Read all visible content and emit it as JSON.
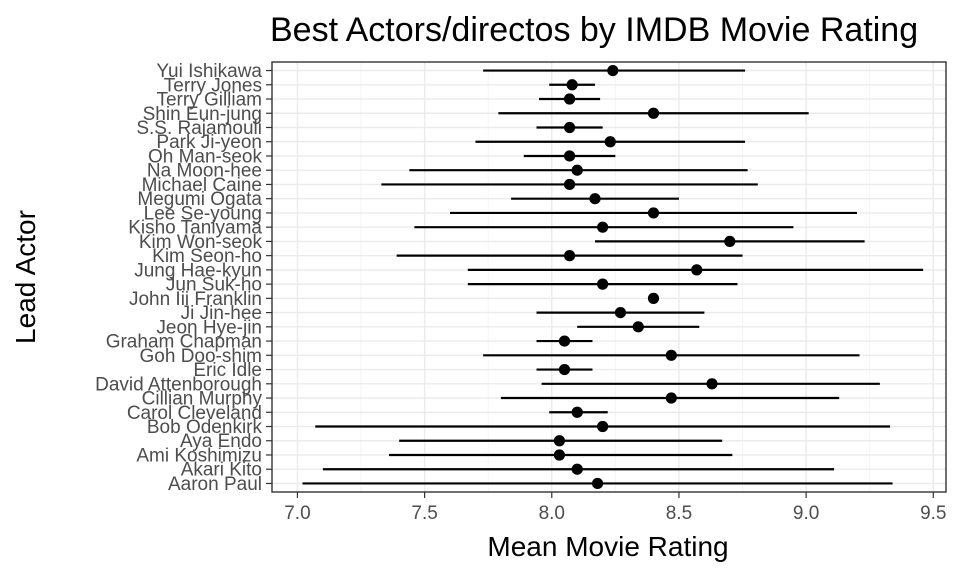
{
  "chart_data": {
    "type": "scatter",
    "title": "Best Actors/directos by IMDB Movie Rating",
    "xlabel": "Mean Movie Rating",
    "ylabel": "Lead Actor",
    "xlim": [
      6.9,
      9.55
    ],
    "x_ticks": [
      "7.0",
      "7.5",
      "8.0",
      "8.5",
      "9.0",
      "9.5"
    ],
    "grid": true,
    "legend": "none",
    "series": [
      {
        "points": [
          {
            "actor": "Yui Ishikawa",
            "mean": 8.24,
            "low": 7.73,
            "high": 8.76
          },
          {
            "actor": "Terry Jones",
            "mean": 8.08,
            "low": 7.99,
            "high": 8.17
          },
          {
            "actor": "Terry Gilliam",
            "mean": 8.07,
            "low": 7.95,
            "high": 8.19
          },
          {
            "actor": "Shin Eun-jung",
            "mean": 8.4,
            "low": 7.79,
            "high": 9.01
          },
          {
            "actor": "S.S. Rajamouli",
            "mean": 8.07,
            "low": 7.94,
            "high": 8.2
          },
          {
            "actor": "Park Ji-yeon",
            "mean": 8.23,
            "low": 7.7,
            "high": 8.76
          },
          {
            "actor": "Oh Man-seok",
            "mean": 8.07,
            "low": 7.89,
            "high": 8.25
          },
          {
            "actor": "Na Moon-hee",
            "mean": 8.1,
            "low": 7.44,
            "high": 8.77
          },
          {
            "actor": "Michael Caine",
            "mean": 8.07,
            "low": 7.33,
            "high": 8.81
          },
          {
            "actor": "Megumi Ogata",
            "mean": 8.17,
            "low": 7.84,
            "high": 8.5
          },
          {
            "actor": "Lee Se-young",
            "mean": 8.4,
            "low": 7.6,
            "high": 9.2
          },
          {
            "actor": "Kisho Taniyama",
            "mean": 8.2,
            "low": 7.46,
            "high": 8.95
          },
          {
            "actor": "Kim Won-seok",
            "mean": 8.7,
            "low": 8.17,
            "high": 9.23
          },
          {
            "actor": "Kim Seon-ho",
            "mean": 8.07,
            "low": 7.39,
            "high": 8.75
          },
          {
            "actor": "Jung Hae-kyun",
            "mean": 8.57,
            "low": 7.67,
            "high": 9.46
          },
          {
            "actor": "Jun Suk-ho",
            "mean": 8.2,
            "low": 7.67,
            "high": 8.73
          },
          {
            "actor": "John Iii Franklin",
            "mean": 8.4,
            "low": 8.4,
            "high": 8.4
          },
          {
            "actor": "Ji Jin-hee",
            "mean": 8.27,
            "low": 7.94,
            "high": 8.6
          },
          {
            "actor": "Jeon Hye-jin",
            "mean": 8.34,
            "low": 8.1,
            "high": 8.58
          },
          {
            "actor": "Graham Chapman",
            "mean": 8.05,
            "low": 7.94,
            "high": 8.16
          },
          {
            "actor": "Goh Doo-shim",
            "mean": 8.47,
            "low": 7.73,
            "high": 9.21
          },
          {
            "actor": "Eric Idle",
            "mean": 8.05,
            "low": 7.94,
            "high": 8.16
          },
          {
            "actor": "David Attenborough",
            "mean": 8.63,
            "low": 7.96,
            "high": 9.29
          },
          {
            "actor": "Cillian Murphy",
            "mean": 8.47,
            "low": 7.8,
            "high": 9.13
          },
          {
            "actor": "Carol Cleveland",
            "mean": 8.1,
            "low": 7.99,
            "high": 8.22
          },
          {
            "actor": "Bob Odenkirk",
            "mean": 8.2,
            "low": 7.07,
            "high": 9.33
          },
          {
            "actor": "Aya Endo",
            "mean": 8.03,
            "low": 7.4,
            "high": 8.67
          },
          {
            "actor": "Ami Koshimizu",
            "mean": 8.03,
            "low": 7.36,
            "high": 8.71
          },
          {
            "actor": "Akari Kito",
            "mean": 8.1,
            "low": 7.1,
            "high": 9.11
          },
          {
            "actor": "Aaron Paul",
            "mean": 8.18,
            "low": 7.02,
            "high": 9.34
          }
        ]
      }
    ]
  }
}
